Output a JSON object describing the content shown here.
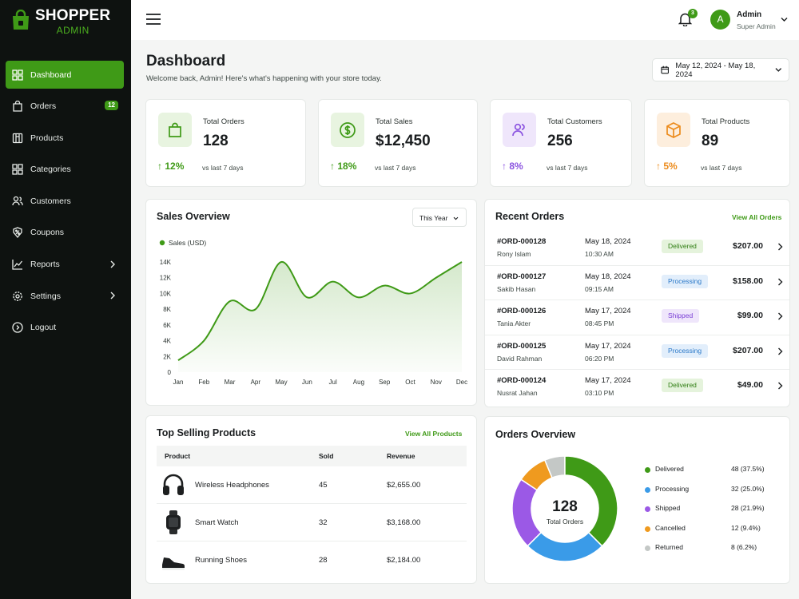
{
  "brand": {
    "name": "SHOPPER",
    "sub": "ADMIN"
  },
  "sidebar": {
    "items": [
      {
        "label": "Dashboard",
        "icon": "grid-icon",
        "active": true
      },
      {
        "label": "Orders",
        "icon": "bag-icon",
        "badge": "12"
      },
      {
        "label": "Products",
        "icon": "box-icon"
      },
      {
        "label": "Categories",
        "icon": "categories-icon"
      },
      {
        "label": "Customers",
        "icon": "users-icon"
      },
      {
        "label": "Coupons",
        "icon": "coupon-icon"
      },
      {
        "label": "Reports",
        "icon": "chart-icon",
        "chevron": true
      },
      {
        "label": "Settings",
        "icon": "gear-icon",
        "chevron": true
      },
      {
        "label": "Logout",
        "icon": "logout-icon"
      }
    ]
  },
  "topbar": {
    "notifications": "3",
    "avatar_letter": "A",
    "user_name": "Admin",
    "user_role": "Super Admin"
  },
  "header": {
    "title": "Dashboard",
    "subtitle": "Welcome back, Admin! Here's what's happening with your store today.",
    "date_range": "May 12, 2024 - May 18, 2024"
  },
  "stats": [
    {
      "label": "Total Orders",
      "value": "128",
      "trend": "12%",
      "note": "vs last 7 days",
      "color": "#3f9a17",
      "bg": "#e8f4e0",
      "icon": "bag-icon"
    },
    {
      "label": "Total Sales",
      "value": "$12,450",
      "trend": "18%",
      "note": "vs last 7 days",
      "color": "#3f9a17",
      "bg": "#e8f4e0",
      "icon": "dollar-icon"
    },
    {
      "label": "Total Customers",
      "value": "256",
      "trend": "8%",
      "note": "vs last 7 days",
      "color": "#8b54e0",
      "bg": "#efe6fb",
      "icon": "users-icon"
    },
    {
      "label": "Total Products",
      "value": "89",
      "trend": "5%",
      "note": "vs last 7 days",
      "color": "#ec8b1c",
      "bg": "#fdeedd",
      "icon": "box-icon"
    }
  ],
  "sales_overview": {
    "title": "Sales Overview",
    "period": "This Year"
  },
  "chart_data": {
    "type": "line",
    "series": [
      {
        "name": "Sales (USD)",
        "color": "#3f9a17",
        "values": [
          1500,
          4000,
          9000,
          8000,
          14000,
          9500,
          11500,
          9500,
          11000,
          10000,
          12000,
          14000
        ]
      }
    ],
    "categories": [
      "Jan",
      "Feb",
      "Mar",
      "Apr",
      "May",
      "Jun",
      "Jul",
      "Aug",
      "Sep",
      "Oct",
      "Nov",
      "Dec"
    ],
    "y_ticks": [
      "0",
      "2K",
      "4K",
      "6K",
      "8K",
      "10K",
      "12K",
      "14K"
    ],
    "ylim": [
      0,
      14000
    ],
    "legend": "top-left",
    "grid": false
  },
  "recent_orders": {
    "title": "Recent Orders",
    "view_all": "View All Orders",
    "rows": [
      {
        "id": "#ORD-000128",
        "name": "Rony Islam",
        "date": "May 18, 2024",
        "time": "10:30 AM",
        "status": "Delivered",
        "status_color": "#2f7d12",
        "status_bg": "#e5f3dc",
        "amount": "$207.00"
      },
      {
        "id": "#ORD-000127",
        "name": "Sakib Hasan",
        "date": "May 18, 2024",
        "time": "09:15 AM",
        "status": "Processing",
        "status_color": "#2a78c8",
        "status_bg": "#e2eefb",
        "amount": "$158.00"
      },
      {
        "id": "#ORD-000126",
        "name": "Tania Akter",
        "date": "May 17, 2024",
        "time": "08:45 PM",
        "status": "Shipped",
        "status_color": "#7a3fd6",
        "status_bg": "#efe6fb",
        "amount": "$99.00"
      },
      {
        "id": "#ORD-000125",
        "name": "David Rahman",
        "date": "May 17, 2024",
        "time": "06:20 PM",
        "status": "Processing",
        "status_color": "#2a78c8",
        "status_bg": "#e2eefb",
        "amount": "$207.00"
      },
      {
        "id": "#ORD-000124",
        "name": "Nusrat Jahan",
        "date": "May 17, 2024",
        "time": "03:10 PM",
        "status": "Delivered",
        "status_color": "#2f7d12",
        "status_bg": "#e5f3dc",
        "amount": "$49.00"
      }
    ]
  },
  "top_products": {
    "title": "Top Selling Products",
    "view_all": "View All Products",
    "headers": [
      "Product",
      "Sold",
      "Revenue"
    ],
    "rows": [
      {
        "name": "Wireless Headphones",
        "sold": "45",
        "revenue": "$2,655.00",
        "icon": "headphones-icon"
      },
      {
        "name": "Smart Watch",
        "sold": "32",
        "revenue": "$3,168.00",
        "icon": "watch-icon"
      },
      {
        "name": "Running Shoes",
        "sold": "28",
        "revenue": "$2,184.00",
        "icon": "shoe-icon"
      }
    ]
  },
  "orders_overview": {
    "title": "Orders Overview",
    "total": "128",
    "total_label": "Total Orders",
    "segments": [
      {
        "label": "Delivered",
        "value": "48 (37.5%)",
        "count": 48,
        "color": "#3f9a17"
      },
      {
        "label": "Processing",
        "value": "32 (25.0%)",
        "count": 32,
        "color": "#3a9be8"
      },
      {
        "label": "Shipped",
        "value": "28 (21.9%)",
        "count": 28,
        "color": "#9b59e6"
      },
      {
        "label": "Cancelled",
        "value": "12 (9.4%)",
        "count": 12,
        "color": "#ef9a1f"
      },
      {
        "label": "Returned",
        "value": "8 (6.2%)",
        "count": 8,
        "color": "#c4c8c6"
      }
    ]
  }
}
